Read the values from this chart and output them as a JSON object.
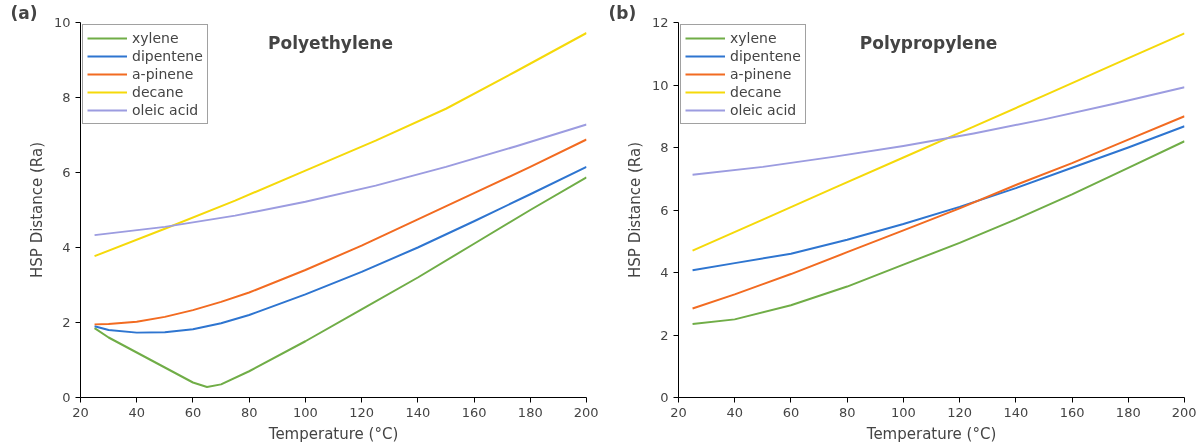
{
  "chart_data": [
    {
      "type": "line",
      "title": "Polyethylene",
      "annotations": [
        "(a)"
      ],
      "xlabel": "Temperature (°C)",
      "ylabel": "HSP Distance (Ra)",
      "xlim": [
        20,
        200
      ],
      "xticks": [
        20,
        40,
        60,
        80,
        100,
        120,
        140,
        160,
        180,
        200
      ],
      "ylim": [
        0,
        10
      ],
      "yticks": [
        0,
        2,
        4,
        6,
        8,
        10
      ],
      "grid": false,
      "legend": "top left",
      "series": [
        {
          "name": "xylene",
          "color": "#70ad47",
          "x": [
            25,
            30,
            40,
            50,
            60,
            65,
            70,
            80,
            100,
            120,
            140,
            160,
            180,
            200
          ],
          "values": [
            1.85,
            1.6,
            1.2,
            0.8,
            0.4,
            0.28,
            0.35,
            0.7,
            1.5,
            2.35,
            3.2,
            4.1,
            5.0,
            5.87
          ]
        },
        {
          "name": "dipentene",
          "color": "#2e75d0",
          "x": [
            25,
            30,
            40,
            50,
            60,
            70,
            80,
            100,
            120,
            140,
            160,
            180,
            200
          ],
          "values": [
            1.9,
            1.8,
            1.73,
            1.74,
            1.82,
            1.98,
            2.2,
            2.75,
            3.35,
            4.0,
            4.7,
            5.42,
            6.15
          ]
        },
        {
          "name": "a-pinene",
          "color": "#f26b21",
          "x": [
            25,
            30,
            40,
            50,
            60,
            70,
            80,
            100,
            120,
            140,
            160,
            180,
            200
          ],
          "values": [
            1.95,
            1.96,
            2.02,
            2.15,
            2.33,
            2.55,
            2.8,
            3.4,
            4.05,
            4.75,
            5.45,
            6.15,
            6.88
          ]
        },
        {
          "name": "decane",
          "color": "#f5d90a",
          "x": [
            25,
            50,
            75,
            100,
            125,
            150,
            175,
            200
          ],
          "values": [
            3.77,
            4.5,
            5.25,
            6.05,
            6.85,
            7.7,
            8.7,
            9.72
          ]
        },
        {
          "name": "oleic acid",
          "color": "#9c9ce0",
          "x": [
            25,
            50,
            75,
            100,
            125,
            150,
            175,
            200
          ],
          "values": [
            4.33,
            4.55,
            4.85,
            5.22,
            5.65,
            6.15,
            6.7,
            7.28
          ]
        }
      ]
    },
    {
      "type": "line",
      "title": "Polypropylene",
      "annotations": [
        "(b)"
      ],
      "xlabel": "Temperature (°C)",
      "ylabel": "HSP Distance (Ra)",
      "xlim": [
        20,
        200
      ],
      "xticks": [
        20,
        40,
        60,
        80,
        100,
        120,
        140,
        160,
        180,
        200
      ],
      "ylim": [
        0,
        12
      ],
      "yticks": [
        0,
        2,
        4,
        6,
        8,
        10,
        12
      ],
      "grid": false,
      "legend": "top left",
      "series": [
        {
          "name": "xylene",
          "color": "#70ad47",
          "x": [
            25,
            40,
            60,
            80,
            100,
            120,
            140,
            160,
            180,
            200
          ],
          "values": [
            2.35,
            2.5,
            2.95,
            3.55,
            4.25,
            4.95,
            5.7,
            6.5,
            7.35,
            8.2
          ]
        },
        {
          "name": "dipentene",
          "color": "#2e75d0",
          "x": [
            25,
            40,
            60,
            80,
            100,
            120,
            140,
            160,
            180,
            200
          ],
          "values": [
            4.07,
            4.3,
            4.6,
            5.05,
            5.55,
            6.1,
            6.7,
            7.35,
            8.0,
            8.68
          ]
        },
        {
          "name": "a-pinene",
          "color": "#f26b21",
          "x": [
            25,
            40,
            60,
            80,
            100,
            120,
            140,
            160,
            180,
            200
          ],
          "values": [
            2.85,
            3.3,
            3.95,
            4.65,
            5.35,
            6.05,
            6.8,
            7.5,
            8.25,
            9.0
          ]
        },
        {
          "name": "decane",
          "color": "#f5d90a",
          "x": [
            25,
            50,
            75,
            100,
            125,
            150,
            175,
            200
          ],
          "values": [
            4.7,
            5.69,
            6.69,
            7.68,
            8.67,
            9.66,
            10.66,
            11.65
          ]
        },
        {
          "name": "oleic acid",
          "color": "#9c9ce0",
          "x": [
            25,
            50,
            75,
            100,
            125,
            150,
            175,
            200
          ],
          "values": [
            7.13,
            7.38,
            7.7,
            8.05,
            8.45,
            8.9,
            9.4,
            9.93
          ]
        }
      ]
    }
  ]
}
